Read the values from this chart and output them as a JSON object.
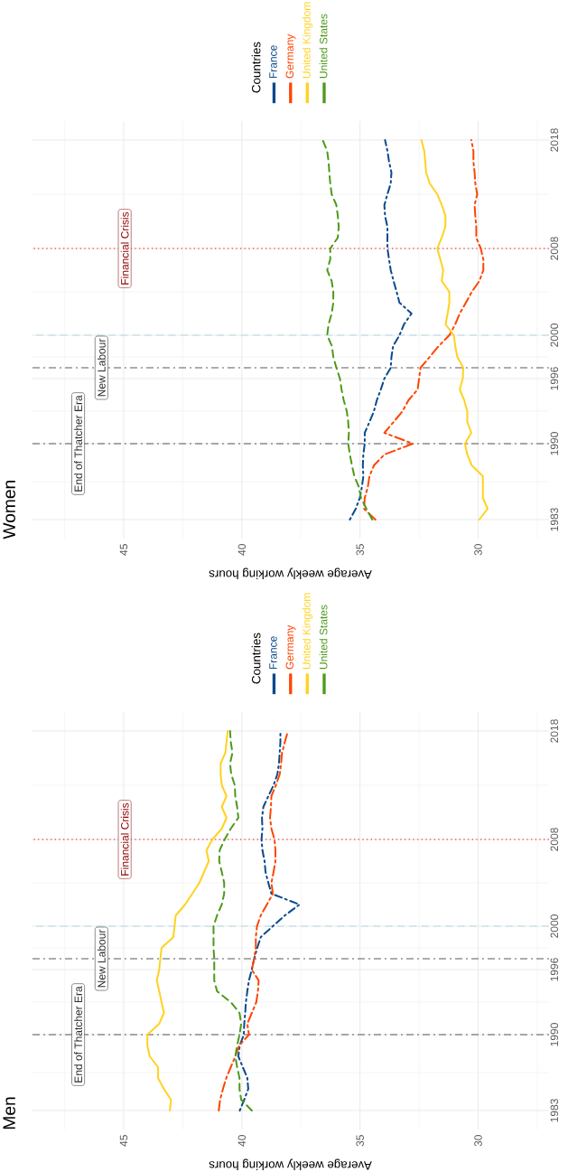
{
  "chart_data": [
    {
      "type": "line",
      "orientation": "horizontal",
      "title": "Men",
      "xlabel": "Average weekly working hours",
      "legend_title": "Countries",
      "x": [
        1983,
        1984,
        1985,
        1986,
        1987,
        1988,
        1989,
        1990,
        1991,
        1992,
        1993,
        1994,
        1995,
        1996,
        1997,
        1998,
        1999,
        2000,
        2001,
        2002,
        2003,
        2004,
        2005,
        2006,
        2007,
        2008,
        2009,
        2010,
        2011,
        2012,
        2013,
        2014,
        2015,
        2016,
        2017,
        2018
      ],
      "series": [
        {
          "name": "France",
          "color": "#0a4a8c",
          "line_style": "dashdot",
          "values": [
            40.09,
            39.9,
            39.73,
            39.77,
            39.96,
            40.15,
            40.09,
            39.92,
            39.9,
            39.86,
            39.83,
            39.77,
            39.7,
            39.58,
            39.48,
            39.35,
            39.2,
            38.69,
            38.18,
            37.56,
            38.75,
            38.88,
            39.0,
            39.04,
            39.13,
            39.17,
            39.13,
            39.15,
            39.09,
            38.88,
            38.66,
            38.5,
            38.43,
            38.4,
            38.37,
            38.37
          ]
        },
        {
          "name": "Germany",
          "color": "#ff4500",
          "line_style": "longdashdot",
          "values": [
            40.98,
            40.92,
            40.8,
            40.66,
            40.47,
            40.28,
            40.11,
            39.7,
            39.77,
            39.58,
            39.39,
            39.32,
            39.29,
            39.58,
            39.48,
            39.41,
            39.41,
            39.36,
            39.2,
            38.94,
            38.69,
            38.75,
            38.66,
            38.58,
            38.58,
            38.62,
            38.75,
            38.81,
            38.77,
            38.75,
            38.56,
            38.4,
            38.34,
            38.3,
            38.18,
            38.05
          ]
        },
        {
          "name": "United Kingdom",
          "color": "#ffd21f",
          "line_style": "solid",
          "values": [
            43.05,
            43.0,
            43.3,
            43.55,
            43.55,
            43.9,
            44.0,
            44.0,
            43.5,
            43.3,
            43.4,
            43.5,
            43.6,
            43.5,
            43.45,
            43.4,
            42.9,
            42.85,
            42.8,
            42.4,
            42.1,
            41.8,
            41.6,
            41.4,
            41.5,
            41.25,
            40.85,
            40.65,
            40.85,
            40.65,
            40.85,
            40.9,
            40.9,
            40.7,
            40.65,
            40.6
          ]
        },
        {
          "name": "United States",
          "color": "#4d9a1a",
          "line_style": "dashed",
          "values": [
            39.58,
            40.03,
            40.1,
            40.1,
            40.2,
            40.28,
            40.2,
            40.1,
            40.03,
            40.1,
            40.47,
            41.05,
            41.17,
            41.17,
            41.17,
            41.2,
            41.2,
            41.2,
            41.05,
            40.85,
            40.75,
            40.75,
            40.85,
            40.96,
            40.94,
            40.73,
            40.47,
            40.15,
            40.2,
            40.28,
            40.3,
            40.45,
            40.5,
            40.4,
            40.47,
            40.5
          ]
        }
      ],
      "xlim": [
        48.9,
        27
      ],
      "ylim": [
        1981.25,
        2019.75
      ],
      "xticks": [
        45,
        40,
        35,
        30
      ],
      "yticks": [
        1983,
        1990,
        1996,
        2000,
        2008,
        2018
      ],
      "grid": true,
      "legend": "top",
      "ref_lines": [
        {
          "axis": "y",
          "value": 1990,
          "label": "End of Thatcher Era",
          "color": "#4d4d4d",
          "line_style": "dashdot"
        },
        {
          "axis": "y",
          "value": 1997,
          "label": "New Labour",
          "color": "#4d4d4d",
          "line_style": "dashdot"
        },
        {
          "axis": "y",
          "value": 2000,
          "color": "#add8e6",
          "line_style": "dashed"
        },
        {
          "axis": "y",
          "value": 2008,
          "label": "Financial Crisis",
          "color": "#ff0000",
          "line_style": "dotted"
        }
      ]
    },
    {
      "type": "line",
      "orientation": "horizontal",
      "title": "Women",
      "xlabel": "Average weekly working hours",
      "legend_title": "Countries",
      "x": [
        1983,
        1984,
        1985,
        1986,
        1987,
        1988,
        1989,
        1990,
        1991,
        1992,
        1993,
        1994,
        1995,
        1996,
        1997,
        1998,
        1999,
        2000,
        2001,
        2002,
        2003,
        2004,
        2005,
        2006,
        2007,
        2008,
        2009,
        2010,
        2011,
        2012,
        2013,
        2014,
        2015,
        2016,
        2017,
        2018
      ],
      "series": [
        {
          "name": "France",
          "color": "#0a4a8c",
          "line_style": "dashdot",
          "values": [
            35.43,
            35.18,
            35.01,
            34.92,
            34.86,
            34.88,
            34.86,
            34.8,
            34.8,
            34.6,
            34.41,
            34.29,
            34.12,
            33.97,
            33.7,
            33.67,
            33.6,
            33.33,
            33.14,
            32.82,
            33.33,
            33.45,
            33.58,
            33.7,
            33.77,
            33.84,
            33.84,
            33.84,
            33.94,
            33.97,
            33.84,
            33.7,
            33.67,
            33.77,
            33.84,
            33.94
          ]
        },
        {
          "name": "Germany",
          "color": "#ff4500",
          "line_style": "longdashdot",
          "values": [
            34.35,
            34.83,
            34.8,
            34.67,
            34.6,
            34.41,
            33.97,
            32.76,
            33.97,
            33.58,
            33.2,
            32.95,
            32.56,
            32.5,
            32.44,
            32.05,
            31.67,
            31.22,
            30.97,
            30.78,
            30.52,
            30.27,
            29.95,
            29.78,
            29.78,
            29.89,
            30.08,
            30.08,
            30.12,
            30.15,
            30.04,
            30.12,
            30.15,
            30.2,
            30.2,
            30.29
          ]
        },
        {
          "name": "United Kingdom",
          "color": "#ffd21f",
          "line_style": "solid",
          "values": [
            29.95,
            29.6,
            29.8,
            29.8,
            29.8,
            30.27,
            30.46,
            30.56,
            30.29,
            30.46,
            30.46,
            30.59,
            30.78,
            30.65,
            30.63,
            30.88,
            30.97,
            31.03,
            31.38,
            31.29,
            31.22,
            31.22,
            31.54,
            31.48,
            31.6,
            31.73,
            31.54,
            31.39,
            31.38,
            31.54,
            31.73,
            32.05,
            32.2,
            32.24,
            32.28,
            32.4
          ]
        },
        {
          "name": "United States",
          "color": "#4d9a1a",
          "line_style": "dashed",
          "values": [
            34.48,
            34.73,
            34.96,
            35.05,
            35.24,
            35.34,
            35.43,
            35.5,
            35.47,
            35.5,
            35.56,
            35.69,
            35.78,
            35.85,
            36.0,
            36.13,
            36.19,
            36.39,
            36.33,
            36.2,
            36.13,
            36.13,
            36.2,
            36.39,
            36.26,
            36.26,
            35.94,
            35.9,
            35.94,
            36.0,
            36.2,
            36.26,
            36.3,
            36.33,
            36.39,
            36.58
          ]
        }
      ],
      "xlim": [
        48.9,
        27
      ],
      "ylim": [
        1981.25,
        2019.75
      ],
      "xticks": [
        45,
        40,
        35,
        30
      ],
      "yticks": [
        1983,
        1990,
        1996,
        2000,
        2008,
        2018
      ],
      "grid": true,
      "legend": "top",
      "ref_lines": [
        {
          "axis": "y",
          "value": 1990,
          "label": "End of Thatcher Era",
          "color": "#4d4d4d",
          "line_style": "dashdot"
        },
        {
          "axis": "y",
          "value": 1997,
          "label": "New Labour",
          "color": "#4d4d4d",
          "line_style": "dashdot"
        },
        {
          "axis": "y",
          "value": 2000,
          "color": "#add8e6",
          "line_style": "dashed"
        },
        {
          "axis": "y",
          "value": 2008,
          "label": "Financial Crisis",
          "color": "#ff0000",
          "line_style": "dotted"
        }
      ]
    }
  ]
}
